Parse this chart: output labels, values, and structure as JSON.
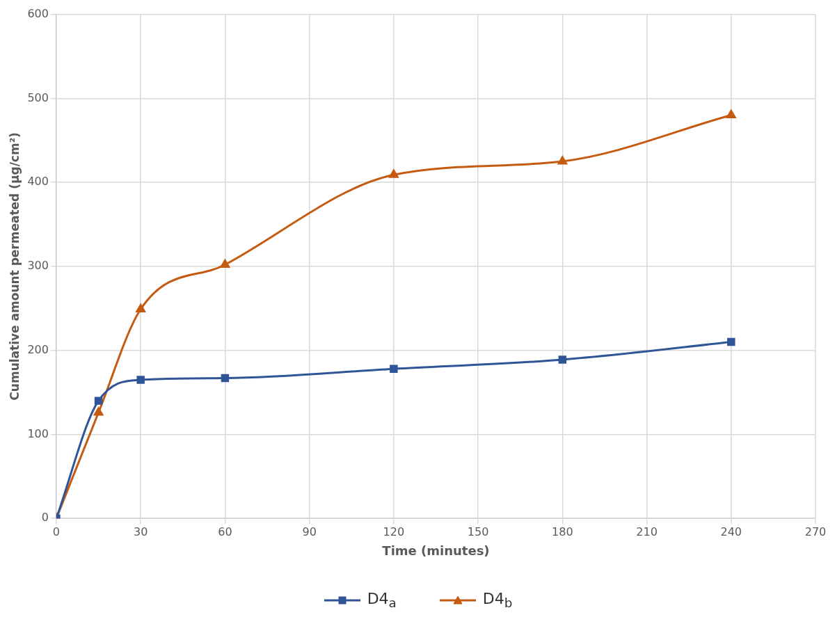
{
  "chart_data": {
    "type": "line",
    "xlabel": "Time (minutes)",
    "ylabel": "Cumulative amount permeated (µg/cm²)",
    "xlim": [
      0,
      270
    ],
    "xticks": [
      0,
      30,
      60,
      90,
      120,
      150,
      180,
      210,
      240,
      270
    ],
    "ylim": [
      0,
      600
    ],
    "yticks": [
      0,
      100,
      200,
      300,
      400,
      500,
      600
    ],
    "grid": true,
    "legend": "bottom",
    "series": [
      {
        "name": "D4$_{a}$",
        "color": "#2f5597",
        "marker": "square",
        "x": [
          0,
          15,
          30,
          60,
          120,
          180,
          240
        ],
        "values": [
          0,
          140,
          165,
          167,
          178,
          189,
          210
        ]
      },
      {
        "name": "D4$_{b}$",
        "color": "#c55a11",
        "marker": "triangle",
        "x": [
          0,
          15,
          30,
          60,
          120,
          180,
          240
        ],
        "values": [
          0,
          126,
          249,
          302,
          409,
          425,
          480
        ]
      }
    ]
  }
}
